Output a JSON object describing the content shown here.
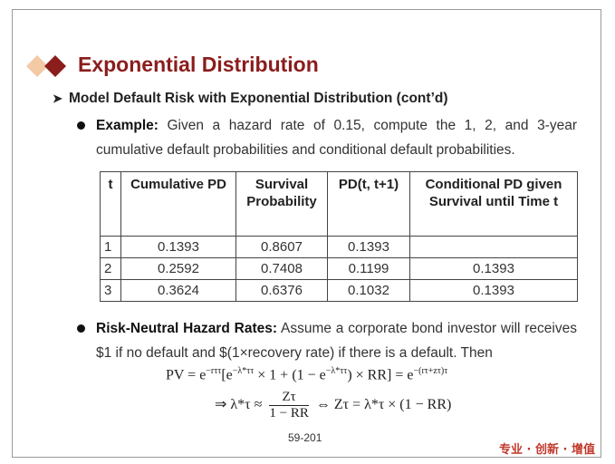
{
  "title": "Exponential Distribution",
  "subtitle": "Model Default Risk with Exponential Distribution (cont’d)",
  "example": {
    "label": "Example:",
    "text": " Given a hazard rate of 0.15, compute the 1, 2, and 3-year cumulative default probabilities and conditional default probabilities."
  },
  "table": {
    "headers": [
      "t",
      "Cumulative PD",
      "Survival Probability",
      "PD(t, t+1)",
      "Conditional PD given Survival until Time t"
    ],
    "rows": [
      [
        "1",
        "0.1393",
        "0.8607",
        "0.1393",
        ""
      ],
      [
        "2",
        "0.2592",
        "0.7408",
        "0.1199",
        "0.1393"
      ],
      [
        "3",
        "0.3624",
        "0.6376",
        "0.1032",
        "0.1393"
      ]
    ]
  },
  "risk_neutral": {
    "label": "Risk-Neutral Hazard Rates:",
    "text": " Assume a corporate bond investor will receives $1 if no default and $(1×recovery rate) if there is a default. Then"
  },
  "formula1": {
    "lhs": "PV = e",
    "exp1": "−rττ",
    "bracket_open": "[e",
    "exp2": "−λ*ττ",
    "mid": " × 1 + (1 − e",
    "exp3": "−λ*ττ",
    "tail": ") × RR] = e",
    "exp4": "−(rτ+zτ)τ"
  },
  "formula2": {
    "pre": "⇒ λ*τ ≈",
    "num": "Zτ",
    "den": "1 − RR",
    "post": "⇔ Zτ = λ*τ × (1 − RR)"
  },
  "page_number": "59-201",
  "brand": "专业 · 创新 · 增值",
  "colors": {
    "title": "#8b1d1d",
    "diamond_dark": "#8b1d1d",
    "diamond_light": "#f3c9a6",
    "brand": "#c0392b"
  }
}
